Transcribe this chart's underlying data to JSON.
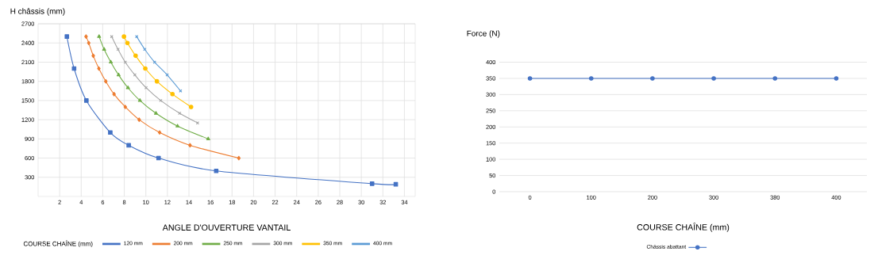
{
  "chart_data": [
    {
      "type": "line",
      "xlabel": "ANGLE D'OUVERTURE VANTAIL",
      "ylabel": "H châssis (mm)",
      "legend_title": "COURSE CHAÎNE (mm)",
      "xlim": [
        0,
        35
      ],
      "xticks": [
        2,
        4,
        6,
        8,
        10,
        12,
        14,
        16,
        18,
        20,
        22,
        24,
        26,
        28,
        30,
        32,
        34
      ],
      "ylim": [
        0,
        2700
      ],
      "yticks": [
        300,
        600,
        900,
        1200,
        1500,
        1800,
        2100,
        2400,
        2700
      ],
      "grid": true,
      "legend": "bottom",
      "series": [
        {
          "name": "120 mm",
          "color": "#4472c4",
          "marker": "square",
          "x": [
            2.67,
            3.34,
            4.48,
            6.7,
            8.41,
            11.18,
            16.53,
            31.0,
            33.2
          ],
          "values": [
            2500,
            2000,
            1500,
            1000,
            800,
            600,
            400,
            200,
            190
          ]
        },
        {
          "name": "200 mm",
          "color": "#ed7d31",
          "marker": "diamond",
          "x": [
            4.45,
            4.7,
            5.12,
            5.64,
            6.28,
            7.05,
            8.09,
            9.38,
            11.28,
            14.1,
            18.63
          ],
          "values": [
            2500,
            2400,
            2200,
            2000,
            1800,
            1600,
            1400,
            1200,
            1000,
            800,
            600
          ]
        },
        {
          "name": "250 mm",
          "color": "#70ad47",
          "marker": "triangle",
          "x": [
            5.66,
            6.13,
            6.75,
            7.47,
            8.34,
            9.45,
            10.94,
            12.94,
            15.79
          ],
          "values": [
            2500,
            2300,
            2100,
            1900,
            1700,
            1500,
            1300,
            1100,
            900
          ]
        },
        {
          "name": "300 mm",
          "color": "#a5a5a5",
          "marker": "cross",
          "x": [
            6.83,
            7.42,
            8.09,
            8.98,
            10.02,
            11.38,
            13.14,
            14.8
          ],
          "values": [
            2500,
            2300,
            2100,
            1900,
            1700,
            1500,
            1300,
            1150
          ]
        },
        {
          "name": "350 mm",
          "color": "#ffc000",
          "marker": "circle",
          "x": [
            7.97,
            8.29,
            9.05,
            9.95,
            11.03,
            12.47,
            14.2
          ],
          "values": [
            2500,
            2400,
            2200,
            2000,
            1800,
            1600,
            1400
          ]
        },
        {
          "name": "400 mm",
          "color": "#5b9bd5",
          "marker": "cross",
          "x": [
            9.15,
            9.9,
            10.81,
            11.98,
            13.22
          ],
          "values": [
            2500,
            2300,
            2100,
            1900,
            1650
          ]
        }
      ]
    },
    {
      "type": "line",
      "xlabel": "COURSE CHAÎNE (mm)",
      "ylabel": "Force (N)",
      "categories": [
        "0",
        "100",
        "200",
        "300",
        "380",
        "400"
      ],
      "ylim": [
        0,
        400
      ],
      "yticks": [
        0,
        50,
        100,
        150,
        200,
        250,
        300,
        350,
        400
      ],
      "grid": "y",
      "legend": "bottom",
      "marker": "circle",
      "series": [
        {
          "name": "Châssis abattant",
          "color": "#4472c4",
          "values": [
            350,
            350,
            350,
            350,
            350,
            350
          ]
        }
      ]
    }
  ]
}
